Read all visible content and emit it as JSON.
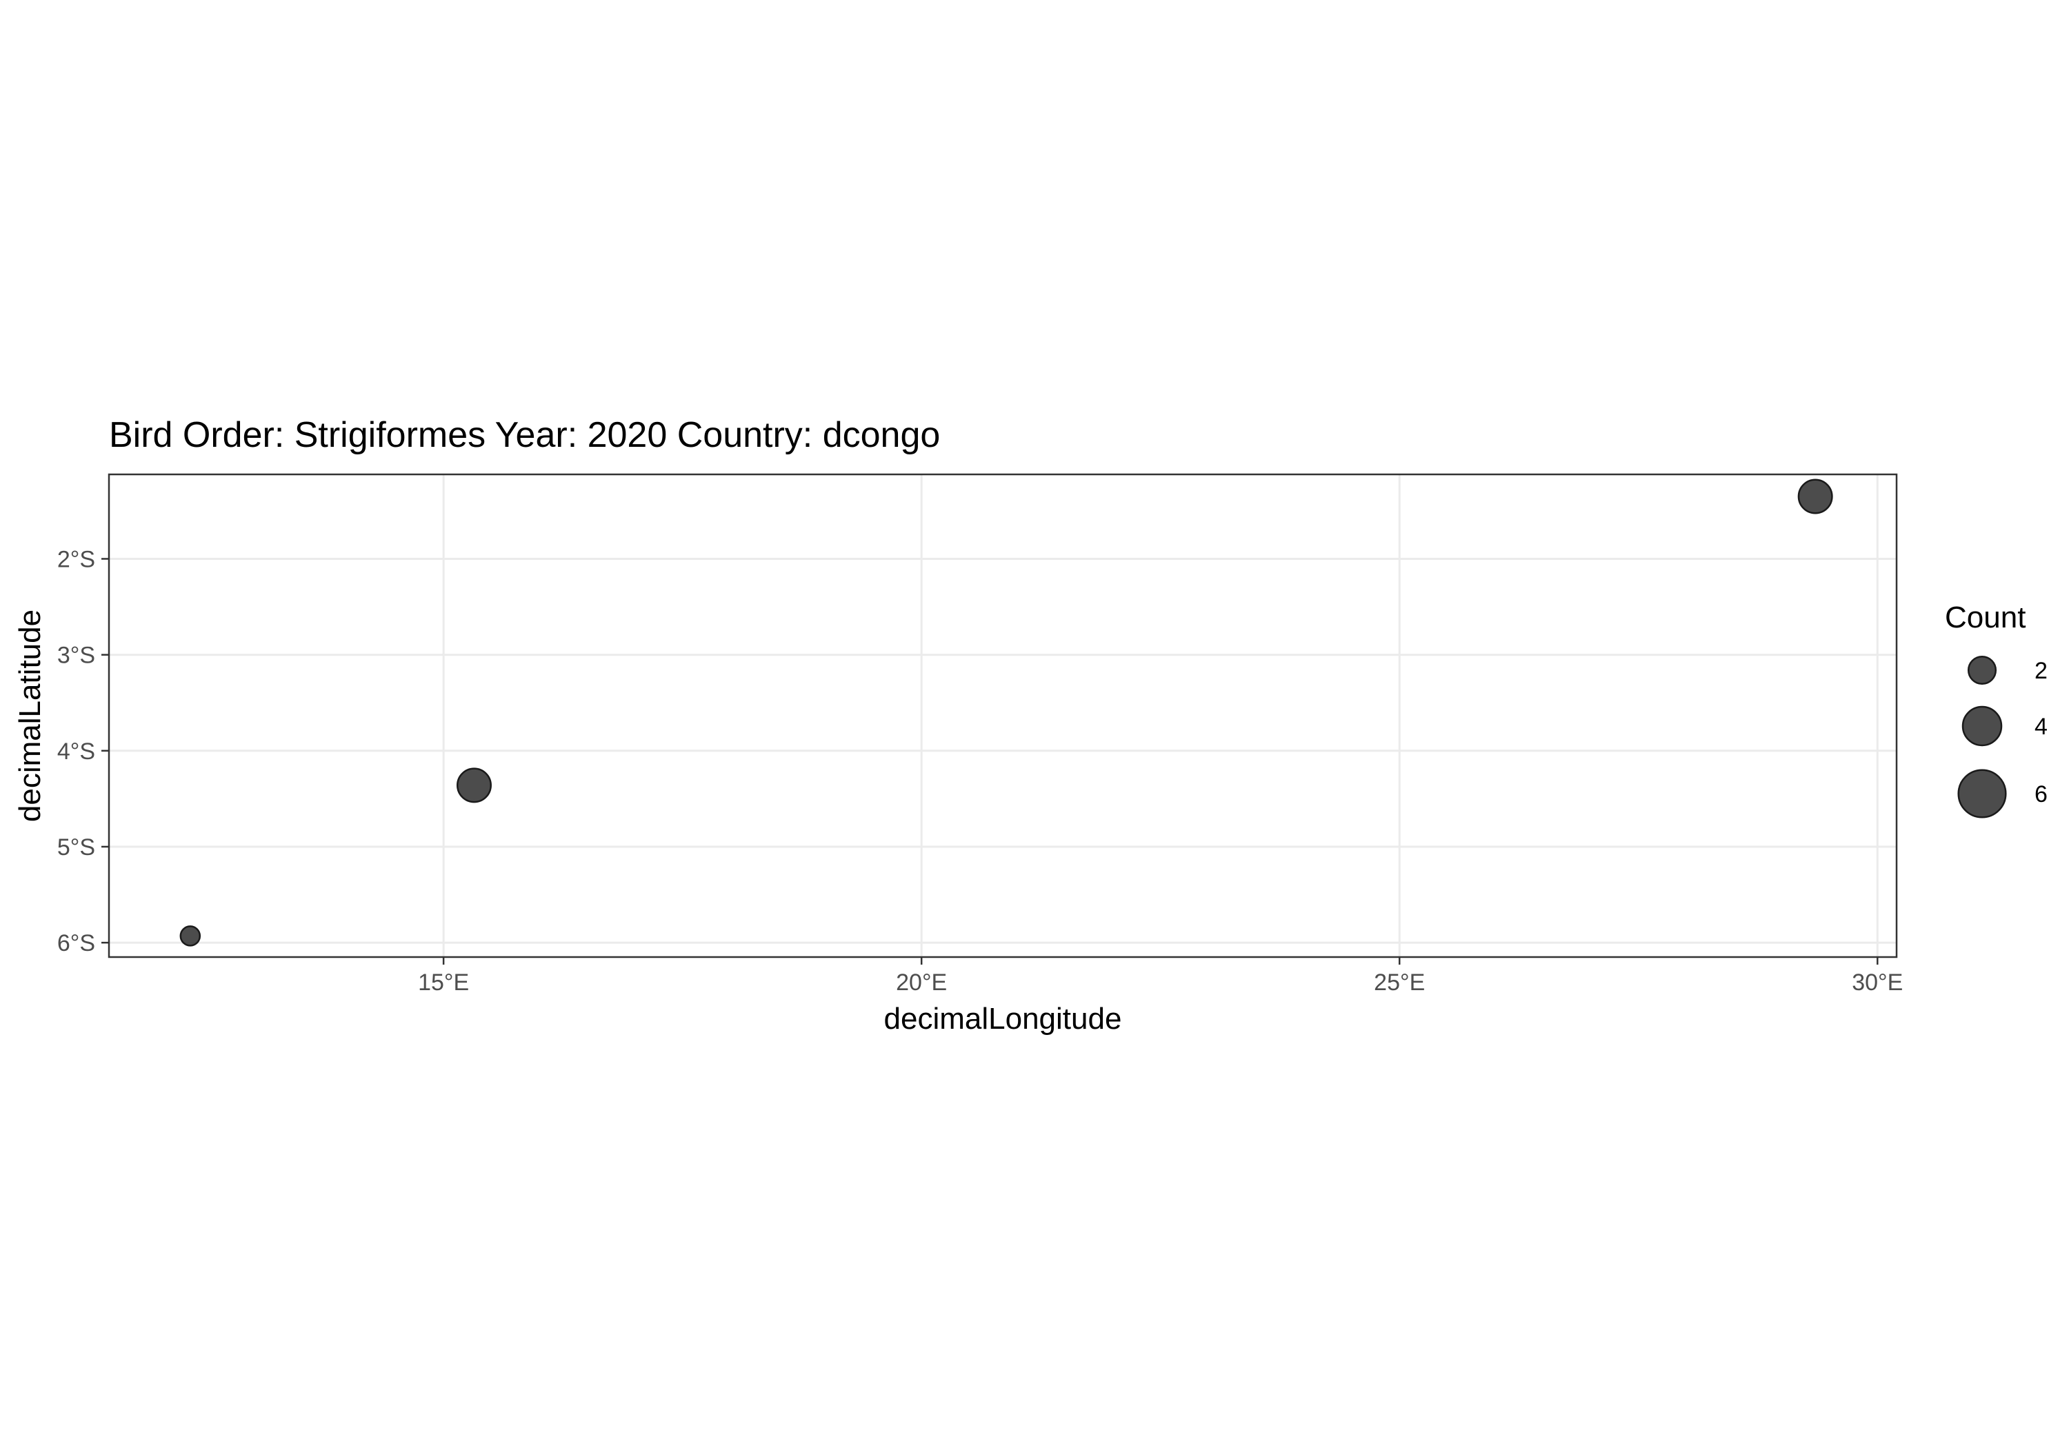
{
  "chart_data": {
    "type": "scatter",
    "title": "Bird Order: Strigiformes Year: 2020 Country: dcongo",
    "xlabel": "decimalLongitude",
    "ylabel": "decimalLatitude",
    "x_ticks": [
      {
        "value": 15,
        "label": "15°E"
      },
      {
        "value": 20,
        "label": "20°E"
      },
      {
        "value": 25,
        "label": "25°E"
      },
      {
        "value": 30,
        "label": "30°E"
      }
    ],
    "y_ticks": [
      {
        "value": -2,
        "label": "2°S"
      },
      {
        "value": -3,
        "label": "3°S"
      },
      {
        "value": -4,
        "label": "4°S"
      },
      {
        "value": -5,
        "label": "5°S"
      },
      {
        "value": -6,
        "label": "6°S"
      }
    ],
    "xlim": [
      11.5,
      30.2
    ],
    "ylim": [
      -6.15,
      -1.12
    ],
    "grid": true,
    "points": [
      {
        "x": 12.35,
        "y": -5.93,
        "count": 1
      },
      {
        "x": 15.32,
        "y": -4.36,
        "count": 3
      },
      {
        "x": 29.35,
        "y": -1.35,
        "count": 3
      }
    ],
    "legend": {
      "title": "Count",
      "placement": "right",
      "entries": [
        {
          "label": "2",
          "count": 2
        },
        {
          "label": "4",
          "count": 4
        },
        {
          "label": "6",
          "count": 6
        }
      ]
    },
    "colors": {
      "point_fill": "#333333",
      "grid": "#ebebeb",
      "panel_border": "#333333"
    }
  }
}
